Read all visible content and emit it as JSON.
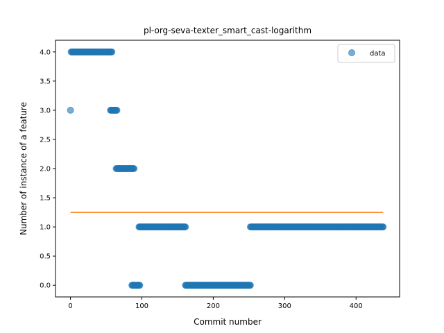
{
  "chart_data": {
    "type": "scatter",
    "title": "pl-org-seva-texter_smart_cast-logarithm",
    "xlabel": "Commit number",
    "ylabel": "Number of instance of a feature",
    "xlim": [
      -21,
      461
    ],
    "ylim": [
      -0.2,
      4.2
    ],
    "xticks": [
      0,
      100,
      200,
      300,
      400
    ],
    "yticks": [
      0.0,
      0.5,
      1.0,
      1.5,
      2.0,
      2.5,
      3.0,
      3.5,
      4.0
    ],
    "xtick_labels": [
      "0",
      "100",
      "200",
      "300",
      "400"
    ],
    "ytick_labels": [
      "0.0",
      "0.5",
      "1.0",
      "1.5",
      "2.0",
      "2.5",
      "3.0",
      "3.5",
      "4.0"
    ],
    "legend": {
      "position": "top-right",
      "entries": [
        "data"
      ]
    },
    "grid": false,
    "colors": {
      "data": "#1f77b4",
      "trend": "#ff7f0e"
    },
    "series": [
      {
        "name": "data",
        "kind": "scatter",
        "segments": [
          {
            "x_start": 0,
            "x_end": 0,
            "y": 3
          },
          {
            "x_start": 1,
            "x_end": 58,
            "y": 4
          },
          {
            "x_start": 56,
            "x_end": 65,
            "y": 3
          },
          {
            "x_start": 64,
            "x_end": 89,
            "y": 2
          },
          {
            "x_start": 86,
            "x_end": 97,
            "y": 0
          },
          {
            "x_start": 96,
            "x_end": 161,
            "y": 1
          },
          {
            "x_start": 161,
            "x_end": 252,
            "y": 0
          },
          {
            "x_start": 252,
            "x_end": 438,
            "y": 1
          }
        ]
      },
      {
        "kind": "line",
        "x": [
          0,
          438
        ],
        "y": [
          1.25,
          1.25
        ]
      }
    ]
  }
}
